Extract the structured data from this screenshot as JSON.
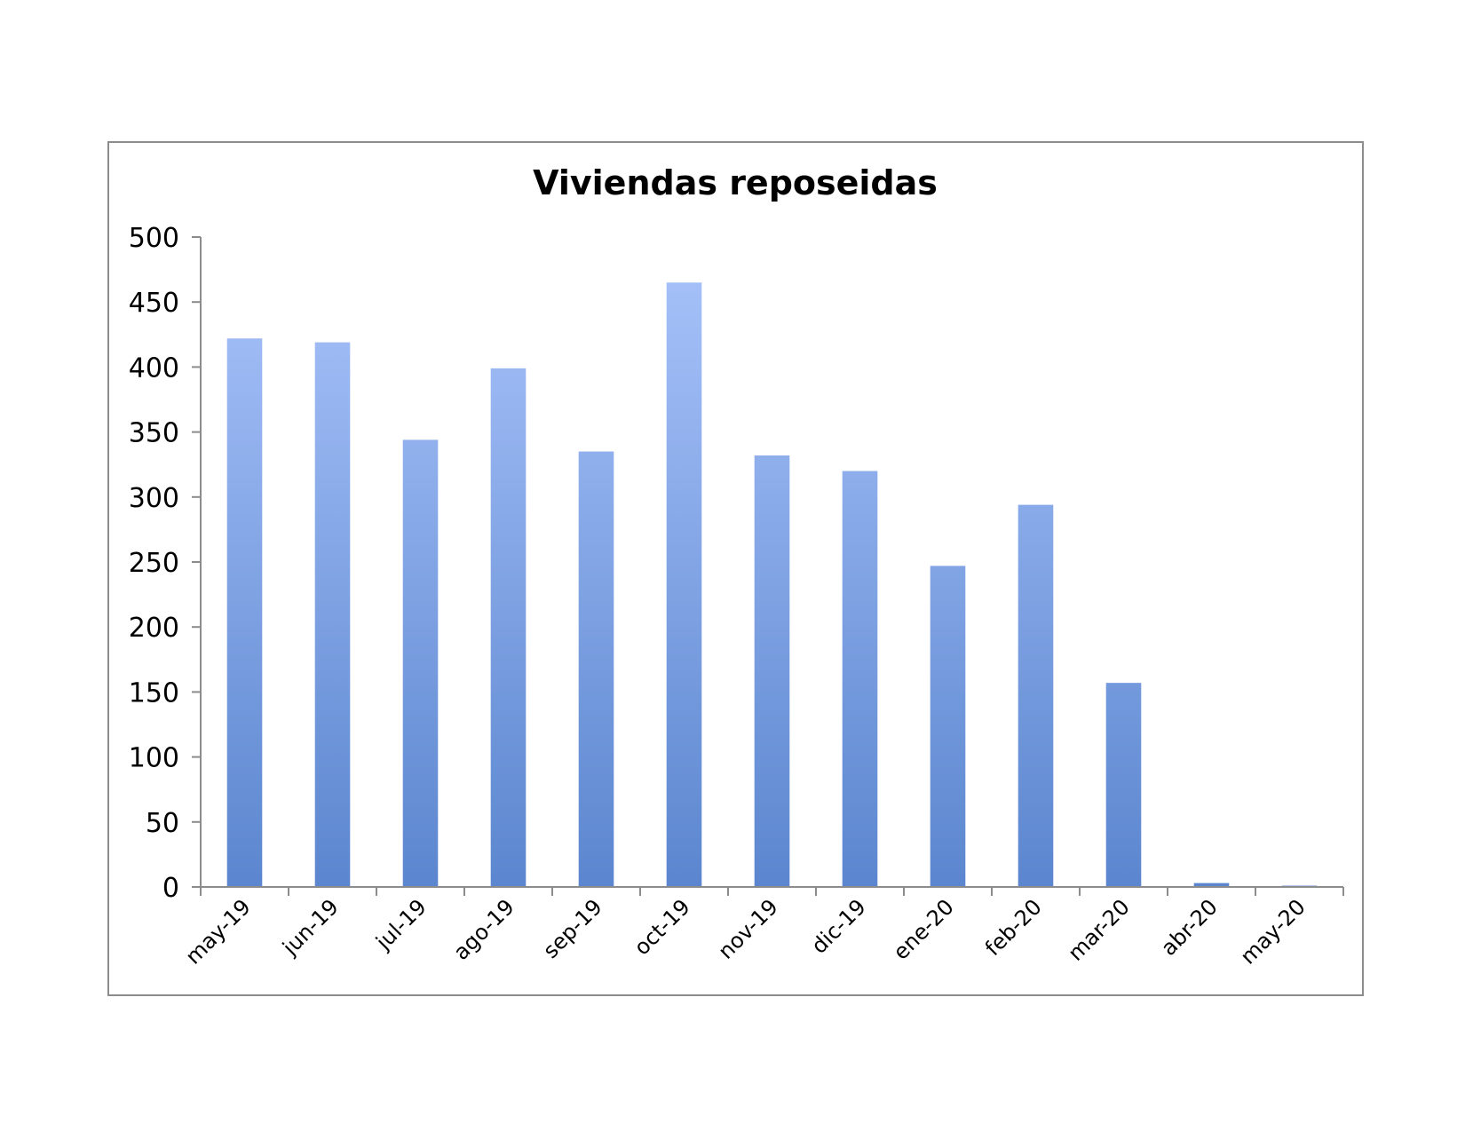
{
  "chart_data": {
    "type": "bar",
    "title": "Viviendas reposeidas",
    "xlabel": "",
    "ylabel": "",
    "categories": [
      "may-19",
      "jun-19",
      "jul-19",
      "ago-19",
      "sep-19",
      "oct-19",
      "nov-19",
      "dic-19",
      "ene-20",
      "feb-20",
      "mar-20",
      "abr-20",
      "may-20"
    ],
    "values": [
      422,
      419,
      344,
      399,
      335,
      465,
      332,
      320,
      247,
      294,
      157,
      3,
      1
    ],
    "ylim": [
      0,
      500
    ],
    "yticks": [
      0,
      50,
      100,
      150,
      200,
      250,
      300,
      350,
      400,
      450,
      500
    ],
    "grid": false,
    "legend": "none",
    "colors": {
      "bar_top": "#aac4fb",
      "bar_bottom": "#5b86cf",
      "axis": "#8c8c8c",
      "frame": "#8c8c8c"
    }
  }
}
